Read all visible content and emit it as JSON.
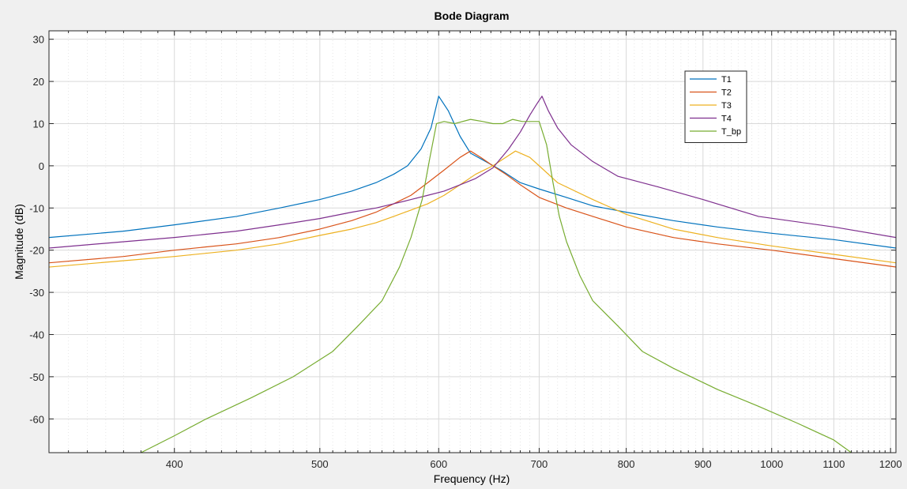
{
  "chart_data": {
    "type": "line",
    "title": "Bode Diagram",
    "xlabel": "Frequency  (Hz)",
    "ylabel": "Magnitude (dB)",
    "x_scale": "log",
    "xlim": [
      330,
      1210
    ],
    "ylim": [
      -68,
      32
    ],
    "grid": true,
    "minor_grid": true,
    "legend_position": "top-right",
    "xticks": [
      400,
      500,
      600,
      700,
      800,
      900,
      1000,
      1100,
      1200
    ],
    "xtick_labels": [
      "400",
      "500",
      "600",
      "700",
      "800",
      "900",
      "1000",
      "1100",
      "1200"
    ],
    "yticks": [
      30,
      20,
      10,
      0,
      -10,
      -20,
      -30,
      -40,
      -50,
      -60
    ],
    "ytick_labels": [
      "30",
      "20",
      "10",
      "0",
      "-10",
      "-20",
      "-30",
      "-40",
      "-50",
      "-60"
    ],
    "series": [
      {
        "name": "T1",
        "color": "#0072BD",
        "x": [
          330,
          370,
          400,
          440,
          470,
          500,
          525,
          545,
          560,
          572,
          584,
          593,
          600,
          609,
          620,
          630,
          645,
          660,
          680,
          700,
          730,
          760,
          800,
          860,
          920,
          1000,
          1100,
          1210
        ],
        "y": [
          -17,
          -15.5,
          -14,
          -12,
          -10,
          -8,
          -6,
          -4,
          -2,
          0,
          4,
          9,
          16.5,
          13,
          7,
          3,
          1,
          -1,
          -4,
          -5.5,
          -7.5,
          -9.5,
          -11,
          -13,
          -14.5,
          -16,
          -17.5,
          -19.5
        ]
      },
      {
        "name": "T2",
        "color": "#D95319",
        "x": [
          330,
          370,
          400,
          440,
          470,
          500,
          525,
          545,
          560,
          575,
          590,
          605,
          620,
          630,
          640,
          652,
          665,
          680,
          700,
          730,
          760,
          800,
          860,
          920,
          1000,
          1100,
          1210
        ],
        "y": [
          -23,
          -21.5,
          -20,
          -18.5,
          -17,
          -15,
          -13,
          -11,
          -9,
          -7,
          -4,
          -1,
          2,
          3.5,
          2,
          0,
          -2,
          -4.5,
          -7.5,
          -10,
          -12,
          -14.5,
          -17,
          -18.5,
          -20,
          -22,
          -24
        ]
      },
      {
        "name": "T3",
        "color": "#EDB120",
        "x": [
          330,
          370,
          400,
          440,
          470,
          500,
          525,
          545,
          560,
          575,
          590,
          605,
          620,
          635,
          652,
          665,
          675,
          690,
          700,
          720,
          760,
          800,
          860,
          920,
          1000,
          1100,
          1210
        ],
        "y": [
          -24,
          -22.5,
          -21.5,
          -20,
          -18.5,
          -16.5,
          -15,
          -13.5,
          -12,
          -10.5,
          -9,
          -7,
          -4.5,
          -2,
          0,
          2,
          3.5,
          2,
          0,
          -4,
          -8,
          -11.5,
          -15,
          -17,
          -19,
          -21,
          -23
        ]
      },
      {
        "name": "T4",
        "color": "#7E2F8E",
        "x": [
          330,
          370,
          400,
          440,
          470,
          500,
          525,
          545,
          560,
          575,
          590,
          605,
          620,
          635,
          652,
          668,
          680,
          690,
          697,
          703,
          710,
          720,
          735,
          760,
          790,
          840,
          900,
          980,
          1100,
          1210
        ],
        "y": [
          -19.5,
          -18,
          -17,
          -15.5,
          -14,
          -12.5,
          -11,
          -10,
          -9,
          -8,
          -7,
          -6,
          -4.5,
          -3,
          -0.5,
          4,
          8,
          12,
          14.5,
          16.5,
          13,
          9,
          5,
          1,
          -2.5,
          -5,
          -8,
          -12,
          -14.5,
          -17
        ]
      },
      {
        "name": "T_bp",
        "color": "#77AC30",
        "x": [
          380,
          400,
          420,
          450,
          480,
          510,
          530,
          550,
          565,
          575,
          585,
          592,
          598,
          605,
          615,
          630,
          642,
          652,
          662,
          672,
          682,
          692,
          700,
          708,
          715,
          722,
          730,
          745,
          760,
          790,
          820,
          860,
          920,
          980,
          1040,
          1100,
          1130
        ],
        "y": [
          -68,
          -64,
          -60,
          -55,
          -50,
          -44,
          -38,
          -32,
          -24,
          -17,
          -8,
          2,
          10,
          10.5,
          10,
          11,
          10.5,
          10,
          10,
          11,
          10.5,
          10.5,
          10.5,
          5,
          -4,
          -12,
          -18,
          -26,
          -32,
          -38,
          -44,
          -48,
          -53,
          -57,
          -61,
          -65,
          -68
        ]
      }
    ]
  }
}
